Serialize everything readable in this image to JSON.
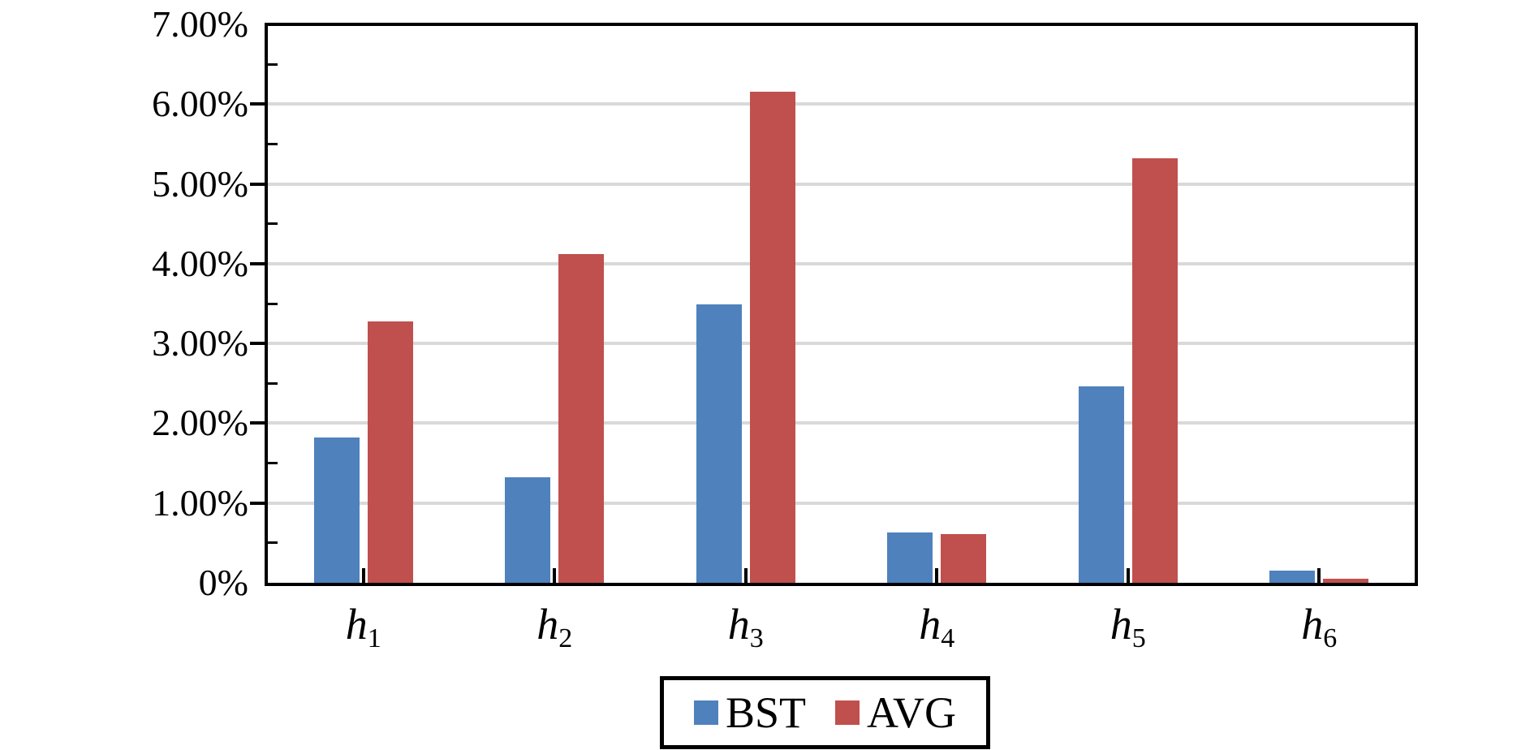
{
  "chart_data": {
    "type": "bar",
    "title": "",
    "xlabel": "",
    "ylabel": "",
    "categories": [
      {
        "base": "h",
        "sub": "1"
      },
      {
        "base": "h",
        "sub": "2"
      },
      {
        "base": "h",
        "sub": "3"
      },
      {
        "base": "h",
        "sub": "4"
      },
      {
        "base": "h",
        "sub": "5"
      },
      {
        "base": "h",
        "sub": "6"
      }
    ],
    "series": [
      {
        "name": "BST",
        "color": "#4F81BD",
        "values": [
          1.82,
          1.32,
          3.49,
          0.63,
          2.46,
          0.15
        ]
      },
      {
        "name": "AVG",
        "color": "#C0504D",
        "values": [
          3.28,
          4.12,
          6.16,
          0.61,
          5.32,
          0.05
        ]
      }
    ],
    "y_axis": {
      "min": 0,
      "max": 7,
      "major_step": 1,
      "minor_step": 0.5,
      "tick_labels": [
        "0%",
        "1.00%",
        "2.00%",
        "3.00%",
        "4.00%",
        "5.00%",
        "6.00%",
        "7.00%"
      ]
    },
    "grid": true,
    "legend_position": "bottom",
    "colors": {
      "gridline": "#D9D9D9",
      "axis": "#000000",
      "background": "#FFFFFF"
    }
  }
}
